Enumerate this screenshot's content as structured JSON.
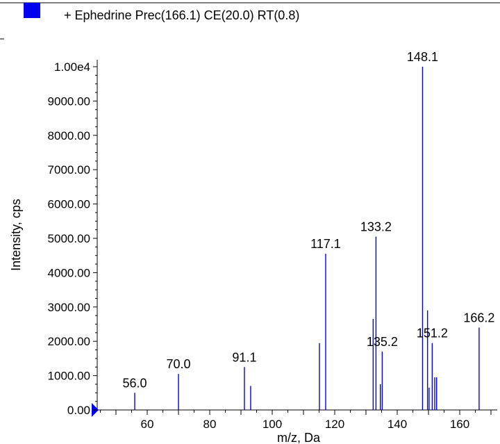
{
  "chart_data": {
    "type": "bar",
    "legend": {
      "label": "+ Ephedrine Prec(166.1) CE(20.0) RT(0.8)",
      "color": "#0000ee",
      "placement": "top"
    },
    "xlabel": "m/z, Da",
    "ylabel": "Intensity, cps",
    "xlim": [
      44,
      172
    ],
    "ylim": [
      0,
      10000
    ],
    "x_ticks": [
      "60",
      "80",
      "100",
      "120",
      "140",
      "160"
    ],
    "x_tick_values": [
      60,
      80,
      100,
      120,
      140,
      160
    ],
    "y_ticks": [
      "0.00",
      "1000.00",
      "2000.00",
      "3000.00",
      "4000.00",
      "5000.00",
      "6000.00",
      "7000.00",
      "8000.00",
      "9000.00",
      "1.00e4"
    ],
    "y_tick_values": [
      0,
      1000,
      2000,
      3000,
      4000,
      5000,
      6000,
      7000,
      8000,
      9000,
      10000
    ],
    "series": [
      {
        "color": "#0000ee",
        "x": [
          56.0,
          70.0,
          91.1,
          93.1,
          115.1,
          117.1,
          132.3,
          133.2,
          134.6,
          135.2,
          148.1,
          149.7,
          150.2,
          151.2,
          152.0,
          152.6,
          166.2
        ],
        "values": [
          500,
          1050,
          1250,
          700,
          1950,
          4550,
          2650,
          5050,
          750,
          1700,
          10000,
          2900,
          650,
          1950,
          950,
          950,
          2400
        ]
      }
    ],
    "peak_labels": [
      {
        "x": 56.0,
        "y": 500,
        "text": "56.0"
      },
      {
        "x": 70.0,
        "y": 1050,
        "text": "70.0"
      },
      {
        "x": 91.1,
        "y": 1250,
        "text": "91.1"
      },
      {
        "x": 117.1,
        "y": 4550,
        "text": "117.1"
      },
      {
        "x": 133.2,
        "y": 5050,
        "text": "133.2"
      },
      {
        "x": 135.2,
        "y": 1700,
        "text": "135.2"
      },
      {
        "x": 148.1,
        "y": 10000,
        "text": "148.1"
      },
      {
        "x": 151.2,
        "y": 1950,
        "text": "151.2"
      },
      {
        "x": 166.2,
        "y": 2400,
        "text": "166.2"
      }
    ],
    "grid": false
  }
}
